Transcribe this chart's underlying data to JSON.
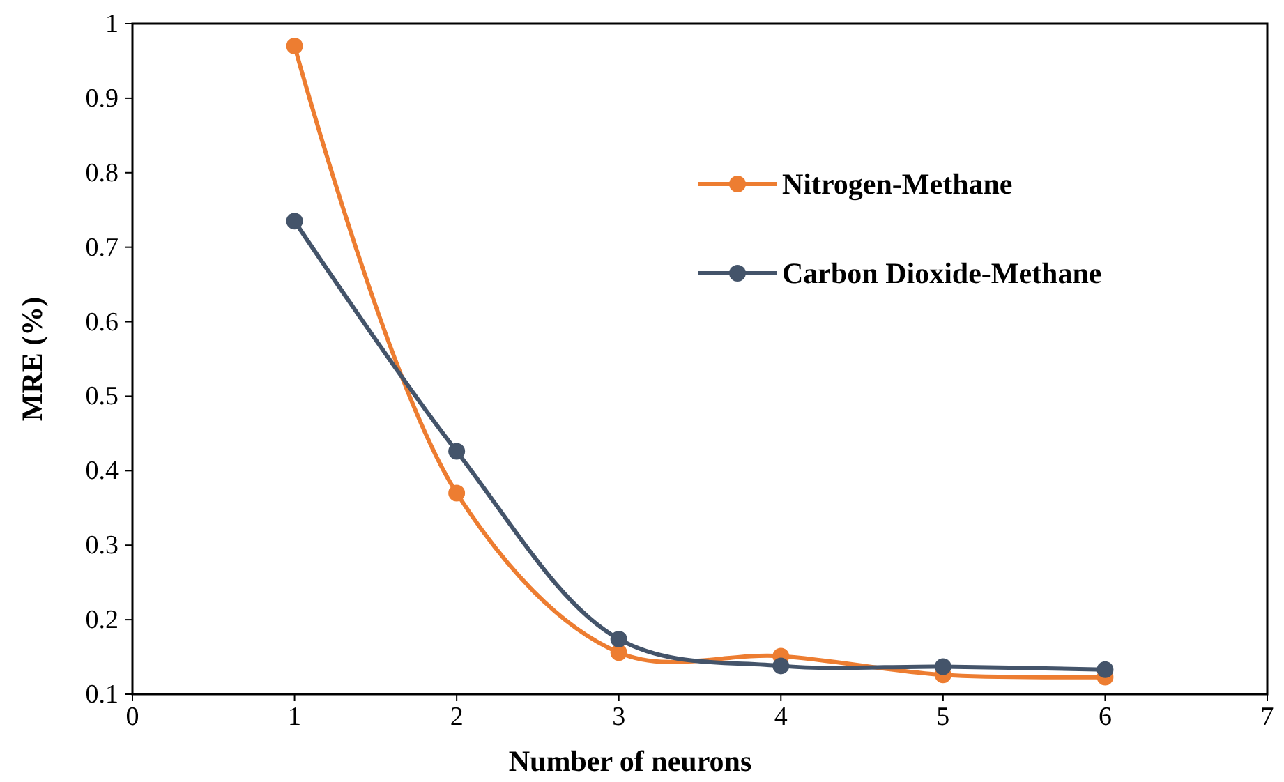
{
  "chart_data": {
    "type": "line",
    "xlabel": "Number of neurons",
    "ylabel": "MRE (%)",
    "x": [
      1,
      2,
      3,
      4,
      5,
      6
    ],
    "series": [
      {
        "name": "Nitrogen-Methane",
        "color": "#ed7d31",
        "values": [
          0.97,
          0.37,
          0.156,
          0.151,
          0.126,
          0.123
        ]
      },
      {
        "name": "Carbon Dioxide-Methane",
        "color": "#44546a",
        "values": [
          0.735,
          0.426,
          0.174,
          0.138,
          0.137,
          0.133
        ]
      }
    ],
    "xlim": [
      0,
      7
    ],
    "xticks": [
      0,
      1,
      2,
      3,
      4,
      5,
      6,
      7
    ],
    "ylim": [
      0.1,
      1
    ],
    "yticks": [
      0.1,
      0.2,
      0.3,
      0.4,
      0.5,
      0.6,
      0.7,
      0.8,
      0.9,
      1
    ],
    "marker": "circle",
    "line_style": "solid",
    "legend": "top right",
    "grid": false
  }
}
